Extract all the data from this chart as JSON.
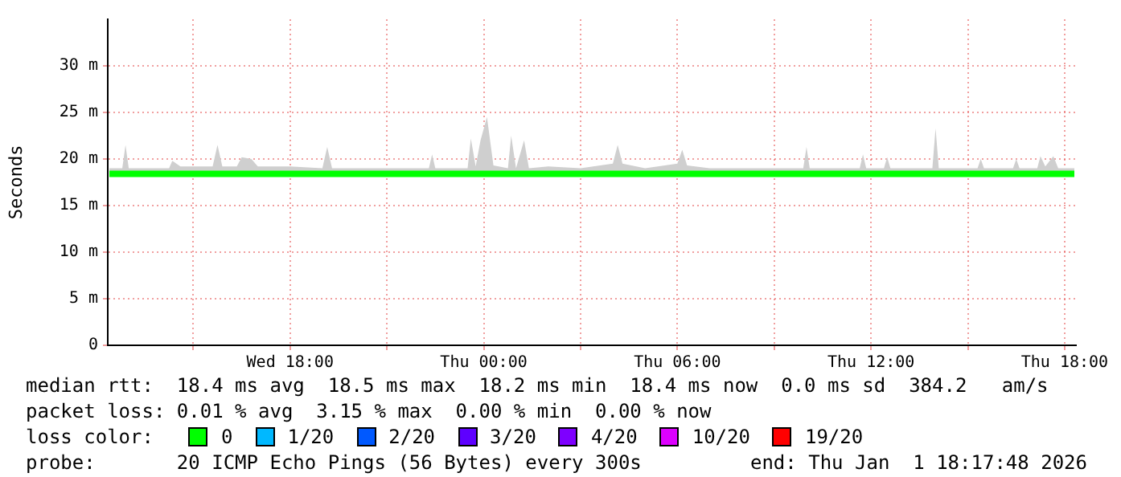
{
  "chart_data": {
    "type": "line",
    "ylabel": "Seconds",
    "grid": true,
    "marker": "none",
    "line_style": "solid",
    "xlim": [
      "2025-12-31T12:21",
      "2026-01-01T18:21"
    ],
    "xticks": [
      {
        "value": "2025-12-31T15:00",
        "label": null
      },
      {
        "value": "2025-12-31T18:00",
        "label": "Wed 18:00"
      },
      {
        "value": "2025-12-31T21:00",
        "label": null
      },
      {
        "value": "2026-01-01T00:00",
        "label": "Thu 00:00"
      },
      {
        "value": "2026-01-01T03:00",
        "label": null
      },
      {
        "value": "2026-01-01T06:00",
        "label": "Thu 06:00"
      },
      {
        "value": "2026-01-01T09:00",
        "label": null
      },
      {
        "value": "2026-01-01T12:00",
        "label": "Thu 12:00"
      },
      {
        "value": "2026-01-01T15:00",
        "label": null
      },
      {
        "value": "2026-01-01T18:00",
        "label": "Thu 18:00"
      }
    ],
    "ylim": [
      0,
      35
    ],
    "yticks": [
      0,
      {
        "value": 5,
        "label": "5 m"
      },
      {
        "value": 10,
        "label": "10 m"
      },
      {
        "value": 15,
        "label": "15 m"
      },
      {
        "value": 20,
        "label": "20 m"
      },
      {
        "value": 25,
        "label": "25 m"
      },
      {
        "value": 30,
        "label": "30 m"
      }
    ],
    "x": [
      "2025-12-31T12:24",
      "2025-12-31T12:48",
      "2025-12-31T12:54",
      "2025-12-31T13:00",
      "2025-12-31T14:00",
      "2025-12-31T14:15",
      "2025-12-31T14:21",
      "2025-12-31T14:36",
      "2025-12-31T15:36",
      "2025-12-31T15:45",
      "2025-12-31T15:54",
      "2025-12-31T16:21",
      "2025-12-31T16:30",
      "2025-12-31T16:48",
      "2025-12-31T17:00",
      "2025-12-31T18:00",
      "2025-12-31T19:00",
      "2025-12-31T19:09",
      "2025-12-31T19:18",
      "2025-12-31T20:00",
      "2025-12-31T21:00",
      "2025-12-31T22:18",
      "2025-12-31T22:24",
      "2025-12-31T22:30",
      "2025-12-31T23:30",
      "2025-12-31T23:36",
      "2025-12-31T23:45",
      "2025-12-31T23:54",
      "2026-01-01T00:06",
      "2026-01-01T00:18",
      "2026-01-01T00:45",
      "2026-01-01T00:51",
      "2026-01-01T01:00",
      "2026-01-01T01:15",
      "2026-01-01T01:24",
      "2026-01-01T02:00",
      "2026-01-01T03:00",
      "2026-01-01T04:00",
      "2026-01-01T04:09",
      "2026-01-01T04:18",
      "2026-01-01T05:00",
      "2026-01-01T06:00",
      "2026-01-01T06:09",
      "2026-01-01T06:18",
      "2026-01-01T07:00",
      "2026-01-01T08:00",
      "2026-01-01T09:00",
      "2026-01-01T09:54",
      "2026-01-01T10:00",
      "2026-01-01T10:06",
      "2026-01-01T11:00",
      "2026-01-01T11:39",
      "2026-01-01T11:45",
      "2026-01-01T11:51",
      "2026-01-01T12:24",
      "2026-01-01T12:30",
      "2026-01-01T12:36",
      "2026-01-01T13:54",
      "2026-01-01T14:00",
      "2026-01-01T14:06",
      "2026-01-01T15:18",
      "2026-01-01T15:24",
      "2026-01-01T15:30",
      "2026-01-01T16:24",
      "2026-01-01T16:30",
      "2026-01-01T16:36",
      "2026-01-01T17:09",
      "2026-01-01T17:15",
      "2026-01-01T17:24",
      "2026-01-01T17:39",
      "2026-01-01T17:48",
      "2026-01-01T18:18"
    ],
    "series": [
      {
        "color": "#00ff00",
        "values": [
          18.4,
          18.4,
          18.4,
          18.4,
          18.4,
          18.4,
          18.4,
          18.4,
          18.4,
          18.4,
          18.4,
          18.4,
          18.4,
          18.4,
          18.4,
          18.4,
          18.4,
          18.4,
          18.4,
          18.4,
          18.4,
          18.4,
          18.4,
          18.4,
          18.4,
          18.4,
          18.4,
          18.4,
          18.4,
          18.4,
          18.4,
          18.4,
          18.4,
          18.4,
          18.4,
          18.4,
          18.4,
          18.4,
          18.4,
          18.4,
          18.4,
          18.4,
          18.4,
          18.4,
          18.4,
          18.4,
          18.4,
          18.4,
          18.4,
          18.4,
          18.4,
          18.4,
          18.4,
          18.4,
          18.4,
          18.4,
          18.4,
          18.4,
          18.4,
          18.4,
          18.4,
          18.4,
          18.4,
          18.4,
          18.4,
          18.4,
          18.4,
          18.4,
          18.4,
          18.4,
          18.4,
          18.4
        ],
        "lower": [
          18.1,
          18.1,
          18.1,
          18.1,
          18.1,
          18.1,
          18.1,
          18.1,
          18.1,
          18.1,
          18.1,
          18.1,
          18.1,
          18.1,
          18.1,
          18.1,
          18.1,
          18.1,
          18.1,
          18.1,
          18.1,
          18.1,
          18.1,
          18.1,
          18.1,
          18.1,
          18.1,
          18.1,
          18.1,
          18.1,
          18.1,
          18.1,
          18.1,
          18.1,
          18.1,
          18.1,
          18.1,
          18.1,
          18.1,
          18.1,
          18.1,
          18.1,
          18.1,
          18.1,
          18.1,
          18.1,
          18.1,
          18.1,
          18.1,
          18.1,
          18.1,
          18.1,
          18.1,
          18.1,
          18.1,
          18.1,
          18.1,
          18.1,
          18.1,
          18.1,
          18.1,
          18.1,
          18.1,
          18.1,
          18.1,
          18.1,
          18.1,
          18.1,
          18.1,
          18.1,
          18.1,
          18.1
        ],
        "upper": [
          19,
          19,
          21.5,
          19,
          19,
          19,
          19.8,
          19.2,
          19.2,
          21.5,
          19.2,
          19.2,
          20.2,
          20,
          19.2,
          19.2,
          19,
          21.3,
          19,
          19,
          19,
          19,
          20.5,
          19,
          19,
          22.2,
          19.2,
          22,
          24.5,
          19.3,
          19,
          22.5,
          19,
          22,
          19,
          19.2,
          19,
          19.5,
          21.5,
          19.5,
          19,
          19.5,
          21,
          19.3,
          19,
          19,
          19,
          19,
          21.3,
          19,
          19,
          19,
          20.5,
          19,
          19,
          20.2,
          19,
          19,
          23.3,
          19,
          19,
          20,
          19,
          19,
          20,
          19,
          19,
          20.3,
          19.2,
          20.3,
          19,
          19
        ]
      }
    ],
    "annotations": [
      "median rtt:  18.4 ms avg  18.5 ms max  18.2 ms min  18.4 ms now  0.0 ms sd  384.2   am/s",
      "packet loss: 0.01 % avg  3.15 % max  0.00 % min  0.00 % now",
      "loss color:",
      "0",
      "1/20",
      "2/20",
      "3/20",
      "4/20",
      "10/20",
      "19/20",
      "probe:       20 ICMP Echo Pings (56 Bytes) every 300s",
      "end: Thu Jan  1 18:17:48 2026"
    ]
  }
}
